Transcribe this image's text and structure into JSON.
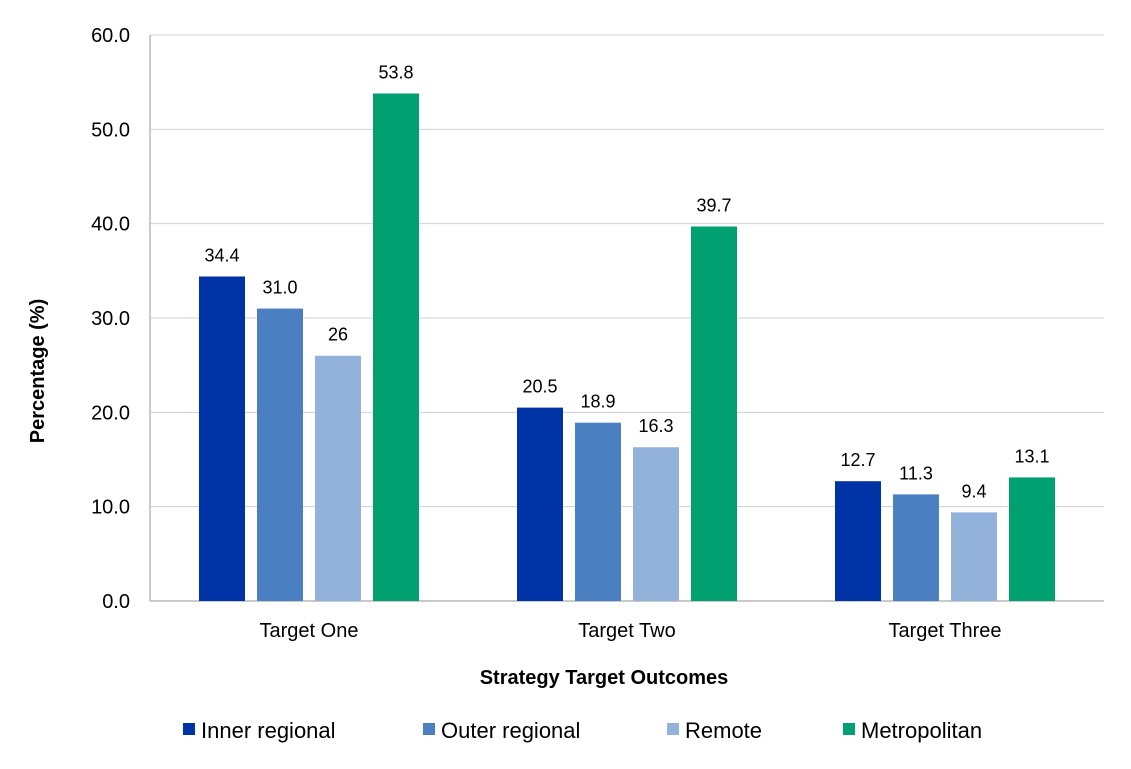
{
  "chart_data": {
    "type": "bar",
    "title": "",
    "xlabel": "Strategy Target Outcomes",
    "ylabel": "Percentage (%)",
    "ylim": [
      0,
      60
    ],
    "yticks": [
      "0.0",
      "10.0",
      "20.0",
      "30.0",
      "40.0",
      "50.0",
      "60.0"
    ],
    "grid": true,
    "legend_position": "bottom",
    "categories": [
      "Target One",
      "Target Two",
      "Target Three"
    ],
    "series": [
      {
        "name": "Inner regional",
        "color": "#0033a6",
        "values": [
          34.4,
          20.5,
          12.7
        ],
        "labels": [
          "34.4",
          "20.5",
          "12.7"
        ]
      },
      {
        "name": "Outer regional",
        "color": "#4a7fc2",
        "values": [
          31.0,
          18.9,
          11.3
        ],
        "labels": [
          "31.0",
          "18.9",
          "11.3"
        ]
      },
      {
        "name": "Remote",
        "color": "#92b2dc",
        "values": [
          26,
          16.3,
          9.4
        ],
        "labels": [
          "26",
          "16.3",
          "9.4"
        ]
      },
      {
        "name": "Metropolitan",
        "color": "#00a070",
        "values": [
          53.8,
          39.7,
          13.1
        ],
        "labels": [
          "53.8",
          "39.7",
          "13.1"
        ]
      }
    ]
  }
}
